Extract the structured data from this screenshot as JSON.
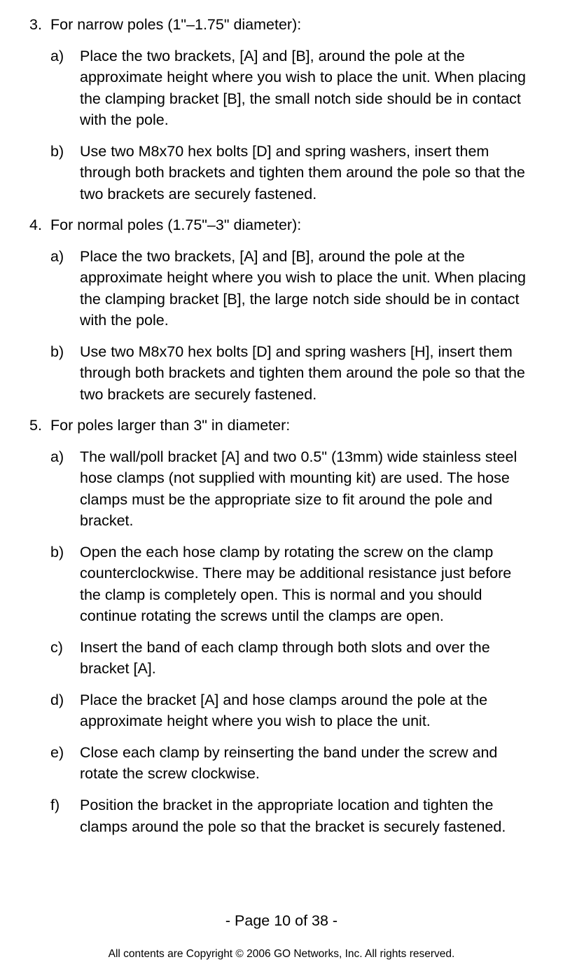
{
  "items": [
    {
      "marker": "3.",
      "heading": "For narrow poles (1\"–1.75\" diameter):",
      "subs": [
        {
          "marker": "a)",
          "text": "Place the two brackets, [A] and [B], around the pole at the approximate height where you wish to place the unit. When placing the clamping bracket [B], the small notch side should be in contact with the pole."
        },
        {
          "marker": "b)",
          "text": "Use two M8x70 hex bolts [D] and spring washers, insert them through both brackets and tighten them around the pole so that the two brackets are securely fastened."
        }
      ]
    },
    {
      "marker": "4.",
      "heading": "For normal poles (1.75\"–3\" diameter):",
      "subs": [
        {
          "marker": "a)",
          "text": "Place the two brackets, [A] and [B], around the pole at the approximate height where you wish to place the unit. When placing the clamping bracket [B], the large notch side should be in contact with the pole."
        },
        {
          "marker": "b)",
          "text": "Use two M8x70 hex bolts [D] and spring washers [H], insert them through both brackets and tighten them around the pole so that the two brackets are securely fastened."
        }
      ]
    },
    {
      "marker": "5.",
      "heading": "For poles larger than 3\" in diameter:",
      "subs": [
        {
          "marker": "a)",
          "text": "The wall/poll bracket [A] and two 0.5\" (13mm) wide stainless steel hose clamps (not supplied with mounting kit) are used. The hose clamps must be the appropriate size to fit around the pole and bracket."
        },
        {
          "marker": "b)",
          "text": "Open the each hose clamp by rotating the screw on the clamp counterclockwise. There may be additional resistance just before the clamp is completely open. This is normal and you should continue rotating the screws until the clamps are open."
        },
        {
          "marker": "c)",
          "text": "Insert the band of each clamp through both slots and over the bracket [A]."
        },
        {
          "marker": "d)",
          "text": "Place the bracket [A] and hose clamps around the pole at the approximate height where you wish to place the unit."
        },
        {
          "marker": "e)",
          "text": "Close each clamp by reinserting the band under the screw and rotate the screw clockwise."
        },
        {
          "marker": "f)",
          "text": "Position the bracket in the appropriate location and tighten the clamps around the pole so that the bracket is securely fastened."
        }
      ]
    }
  ],
  "footer": {
    "page": "- Page 10 of 38 -",
    "copyright": "All contents are Copyright © 2006 GO Networks, Inc. All rights reserved."
  }
}
